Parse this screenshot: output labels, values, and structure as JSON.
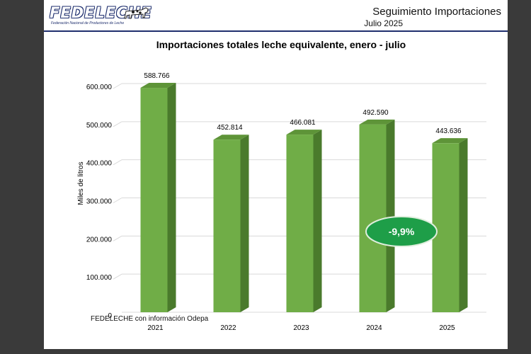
{
  "header": {
    "logo_text": "FEDELECHE",
    "logo_subtitle": "Federación Nacional de Productores de Leche",
    "title": "Seguimiento Importaciones",
    "subtitle": "Julio 2025"
  },
  "source": "FEDELECHE con información Odepa",
  "callout": "-9,9%",
  "colors": {
    "bar_front": "#70ad47",
    "bar_side": "#4a7a2c",
    "bar_top": "#5e9438",
    "callout": "#1e9e48",
    "header_line": "#1f2f6e"
  },
  "chart_data": {
    "type": "bar",
    "title": "Importaciones totales leche equivalente, enero - julio",
    "ylabel": "Miles de litros",
    "xlabel": "",
    "categories": [
      "2021",
      "2022",
      "2023",
      "2024",
      "2025"
    ],
    "values": [
      588766,
      452814,
      466081,
      492590,
      443636
    ],
    "value_labels": [
      "588.766",
      "452.814",
      "466.081",
      "492.590",
      "443.636"
    ],
    "ylim": [
      0,
      600000
    ],
    "yticks": [
      0,
      100000,
      200000,
      300000,
      400000,
      500000,
      600000
    ],
    "ytick_labels": [
      "0",
      "100.000",
      "200.000",
      "300.000",
      "400.000",
      "500.000",
      "600.000"
    ],
    "grid": true
  }
}
